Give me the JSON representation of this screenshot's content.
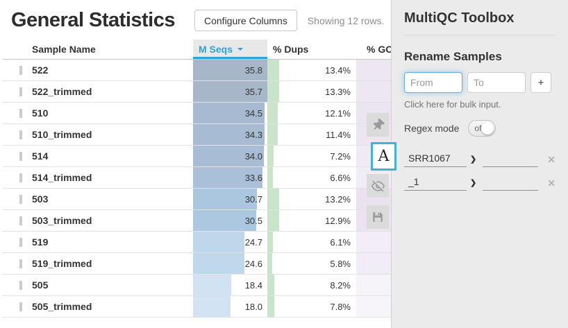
{
  "header": {
    "title": "General Statistics",
    "configure_columns": "Configure Columns",
    "showing": "Showing 12 rows."
  },
  "table": {
    "col_sample": "Sample Name",
    "col_mseqs": "M Seqs",
    "col_dups": "% Dups",
    "col_gc": "% GC",
    "sorted_column": "M Seqs",
    "sort_direction": "descending",
    "colors": {
      "dups_bar": "#c8e4c9",
      "sort_accent": "#2aa4d4"
    },
    "rows": [
      {
        "sample": "522",
        "mseqs": "35.8",
        "dups": "13.4%",
        "mseqs_color": "#a8b6c9",
        "gc_color": "#ede7f2"
      },
      {
        "sample": "522_trimmed",
        "mseqs": "35.7",
        "dups": "13.3%",
        "mseqs_color": "#a8b6c9",
        "gc_color": "#ede7f2"
      },
      {
        "sample": "510",
        "mseqs": "34.5",
        "dups": "12.1%",
        "mseqs_color": "#a7bad1",
        "gc_color": "#ebe5f0"
      },
      {
        "sample": "510_trimmed",
        "mseqs": "34.3",
        "dups": "11.4%",
        "mseqs_color": "#a7bbd2",
        "gc_color": "#ece6f1"
      },
      {
        "sample": "514",
        "mseqs": "34.0",
        "dups": "7.2%",
        "mseqs_color": "#a8bdd5",
        "gc_color": "#f0eaf4"
      },
      {
        "sample": "514_trimmed",
        "mseqs": "33.6",
        "dups": "6.6%",
        "mseqs_color": "#a9c0d8",
        "gc_color": "#f1ecf5"
      },
      {
        "sample": "503",
        "mseqs": "30.7",
        "dups": "13.2%",
        "mseqs_color": "#abc7e0",
        "gc_color": "#eae3ef"
      },
      {
        "sample": "503_trimmed",
        "mseqs": "30.5",
        "dups": "12.9%",
        "mseqs_color": "#acc8e1",
        "gc_color": "#ebe4f0"
      },
      {
        "sample": "519",
        "mseqs": "24.7",
        "dups": "6.1%",
        "mseqs_color": "#bed7eb",
        "gc_color": "#f2edf6"
      },
      {
        "sample": "519_trimmed",
        "mseqs": "24.6",
        "dups": "5.8%",
        "mseqs_color": "#bfd8ec",
        "gc_color": "#f1ecf5"
      },
      {
        "sample": "505",
        "mseqs": "18.4",
        "dups": "8.2%",
        "mseqs_color": "#d1e3f2",
        "gc_color": "#f7f4f9"
      },
      {
        "sample": "505_trimmed",
        "mseqs": "18.0",
        "dups": "7.8%",
        "mseqs_color": "#d2e4f3",
        "gc_color": "#f8f5fa"
      }
    ]
  },
  "toolbox": {
    "title": "MultiQC Toolbox",
    "rename_tab_label": "A",
    "rename": {
      "heading": "Rename Samples",
      "from_placeholder": "From",
      "to_placeholder": "To",
      "add_label": "+",
      "bulk_link": "Click here for bulk input.",
      "regex_label": "Regex mode",
      "regex_state": "off",
      "entries": [
        {
          "from": "SRR1067",
          "to": ""
        },
        {
          "from": "_1",
          "to": ""
        }
      ]
    },
    "icons": {
      "arrow": "❯",
      "close": "✕"
    }
  }
}
